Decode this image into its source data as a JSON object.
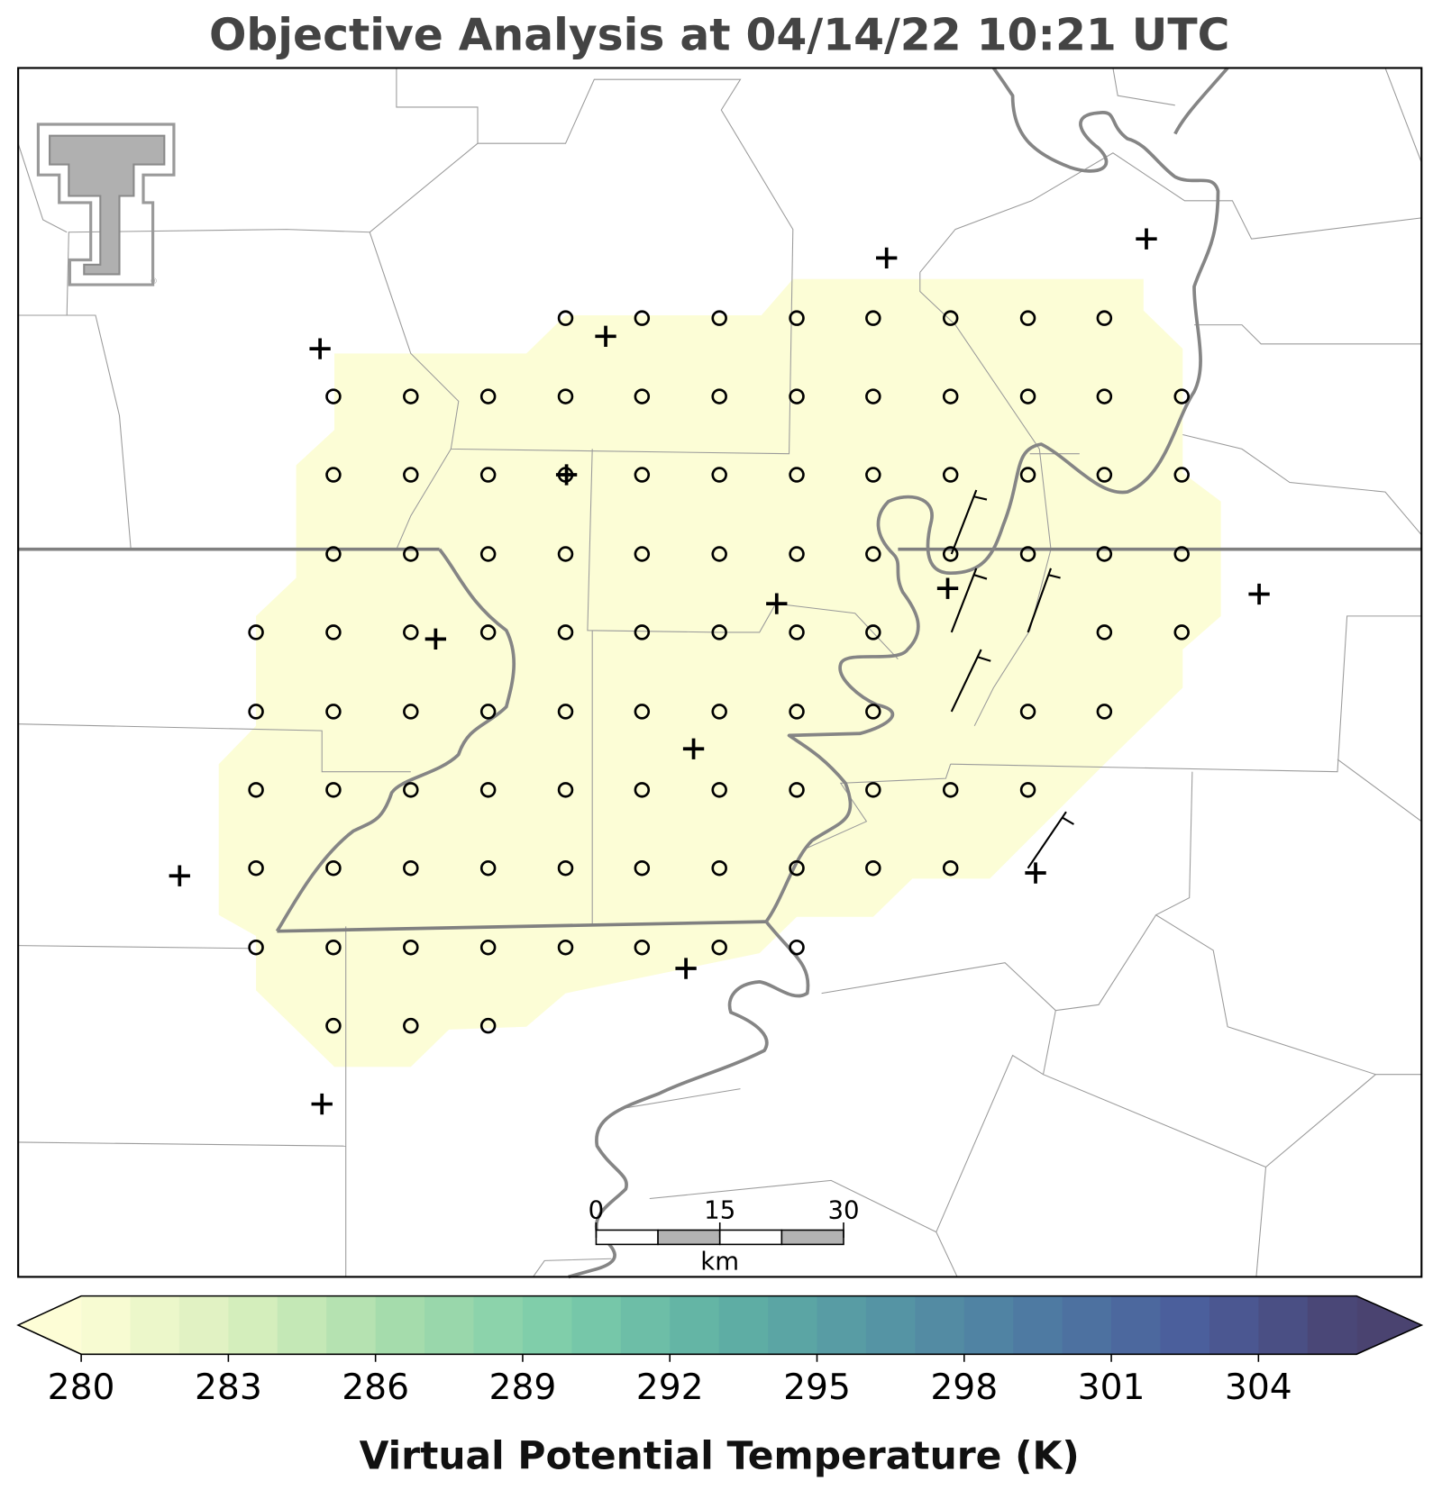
{
  "title": "Objective Analysis at 04/14/22 10:21 UTC",
  "colorbar": {
    "label": "Virtual Potential Temperature (K)",
    "lim": [
      280,
      306
    ],
    "ticks": [
      280,
      283,
      286,
      289,
      292,
      295,
      298,
      301,
      304
    ],
    "colors": [
      "#fdfdd6",
      "#d8efbd",
      "#a5dcac",
      "#7dcdaa",
      "#5fb1a4",
      "#5696a4",
      "#4e7aa2",
      "#4b5d9b",
      "#4a4370"
    ]
  },
  "scale_bar": {
    "lim": [
      0,
      30
    ],
    "ticks": [
      0,
      15,
      30
    ],
    "unit": "km"
  }
}
